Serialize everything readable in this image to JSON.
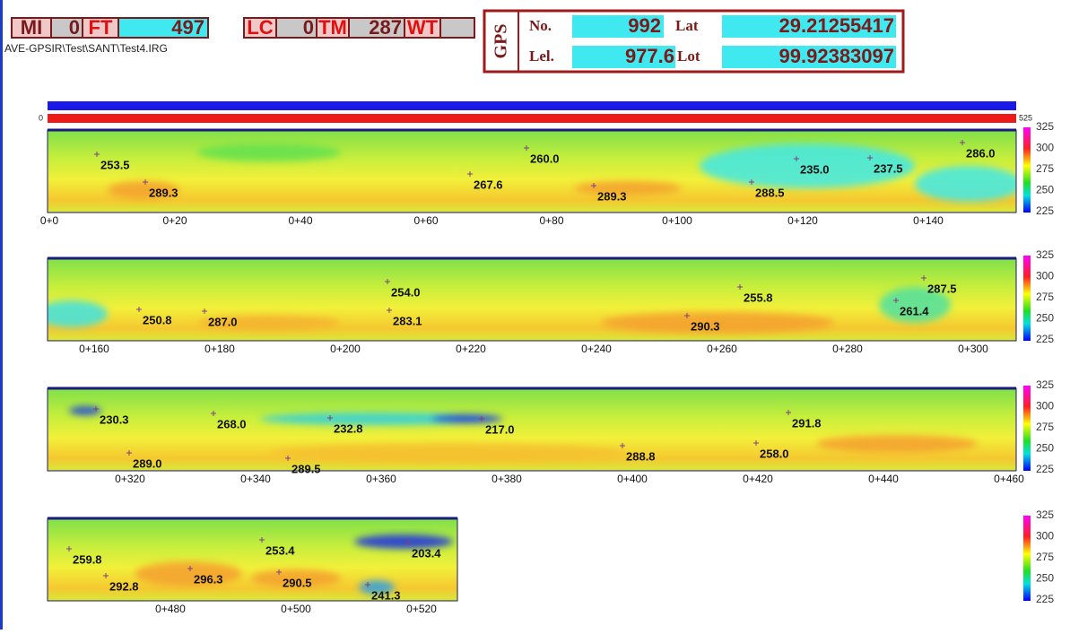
{
  "header": {
    "mi_label": "MI",
    "mi": "0",
    "ft_label": "FT",
    "ft": "497",
    "lc_label": "LC",
    "lc": "0",
    "tm_label": "TM",
    "tm": "287",
    "wt_label": "WT"
  },
  "file_path": "AVE-GPSIR\\Test\\SANT\\Test4.IRG",
  "gps": {
    "title": "GPS",
    "no_label": "No.",
    "no": "992",
    "lat_label": "Lat",
    "lat": "29.21255417",
    "lel_label": "Lel.",
    "lel": "977.6",
    "lot_label": "Lot",
    "lot": "99.92383097"
  },
  "progress": {
    "start": "0",
    "end": "525"
  },
  "color_scale": [
    "325",
    "300",
    "275",
    "250",
    "225"
  ],
  "strips": [
    {
      "ticks": [
        "0+0",
        "0+20",
        "0+40",
        "0+60",
        "0+80",
        "0+100",
        "0+120",
        "0+140"
      ],
      "annotations": [
        "253.5",
        "289.3",
        "260.0",
        "267.6",
        "289.3",
        "288.5",
        "235.0",
        "237.5",
        "286.0"
      ]
    },
    {
      "ticks": [
        "0+160",
        "0+180",
        "0+200",
        "0+220",
        "0+240",
        "0+260",
        "0+280",
        "0+300"
      ],
      "annotations": [
        "250.8",
        "287.0",
        "254.0",
        "283.1",
        "290.3",
        "255.8",
        "261.4",
        "287.5"
      ]
    },
    {
      "ticks": [
        "0+320",
        "0+340",
        "0+360",
        "0+380",
        "0+400",
        "0+420",
        "0+440",
        "0+460"
      ],
      "annotations": [
        "230.3",
        "268.0",
        "232.8",
        "217.0",
        "291.8",
        "288.8",
        "258.0",
        "289.0",
        "289.5"
      ]
    },
    {
      "ticks": [
        "0+480",
        "0+500",
        "0+520"
      ],
      "annotations": [
        "259.8",
        "292.8",
        "296.3",
        "253.4",
        "290.5",
        "203.4",
        "241.3"
      ]
    }
  ]
}
